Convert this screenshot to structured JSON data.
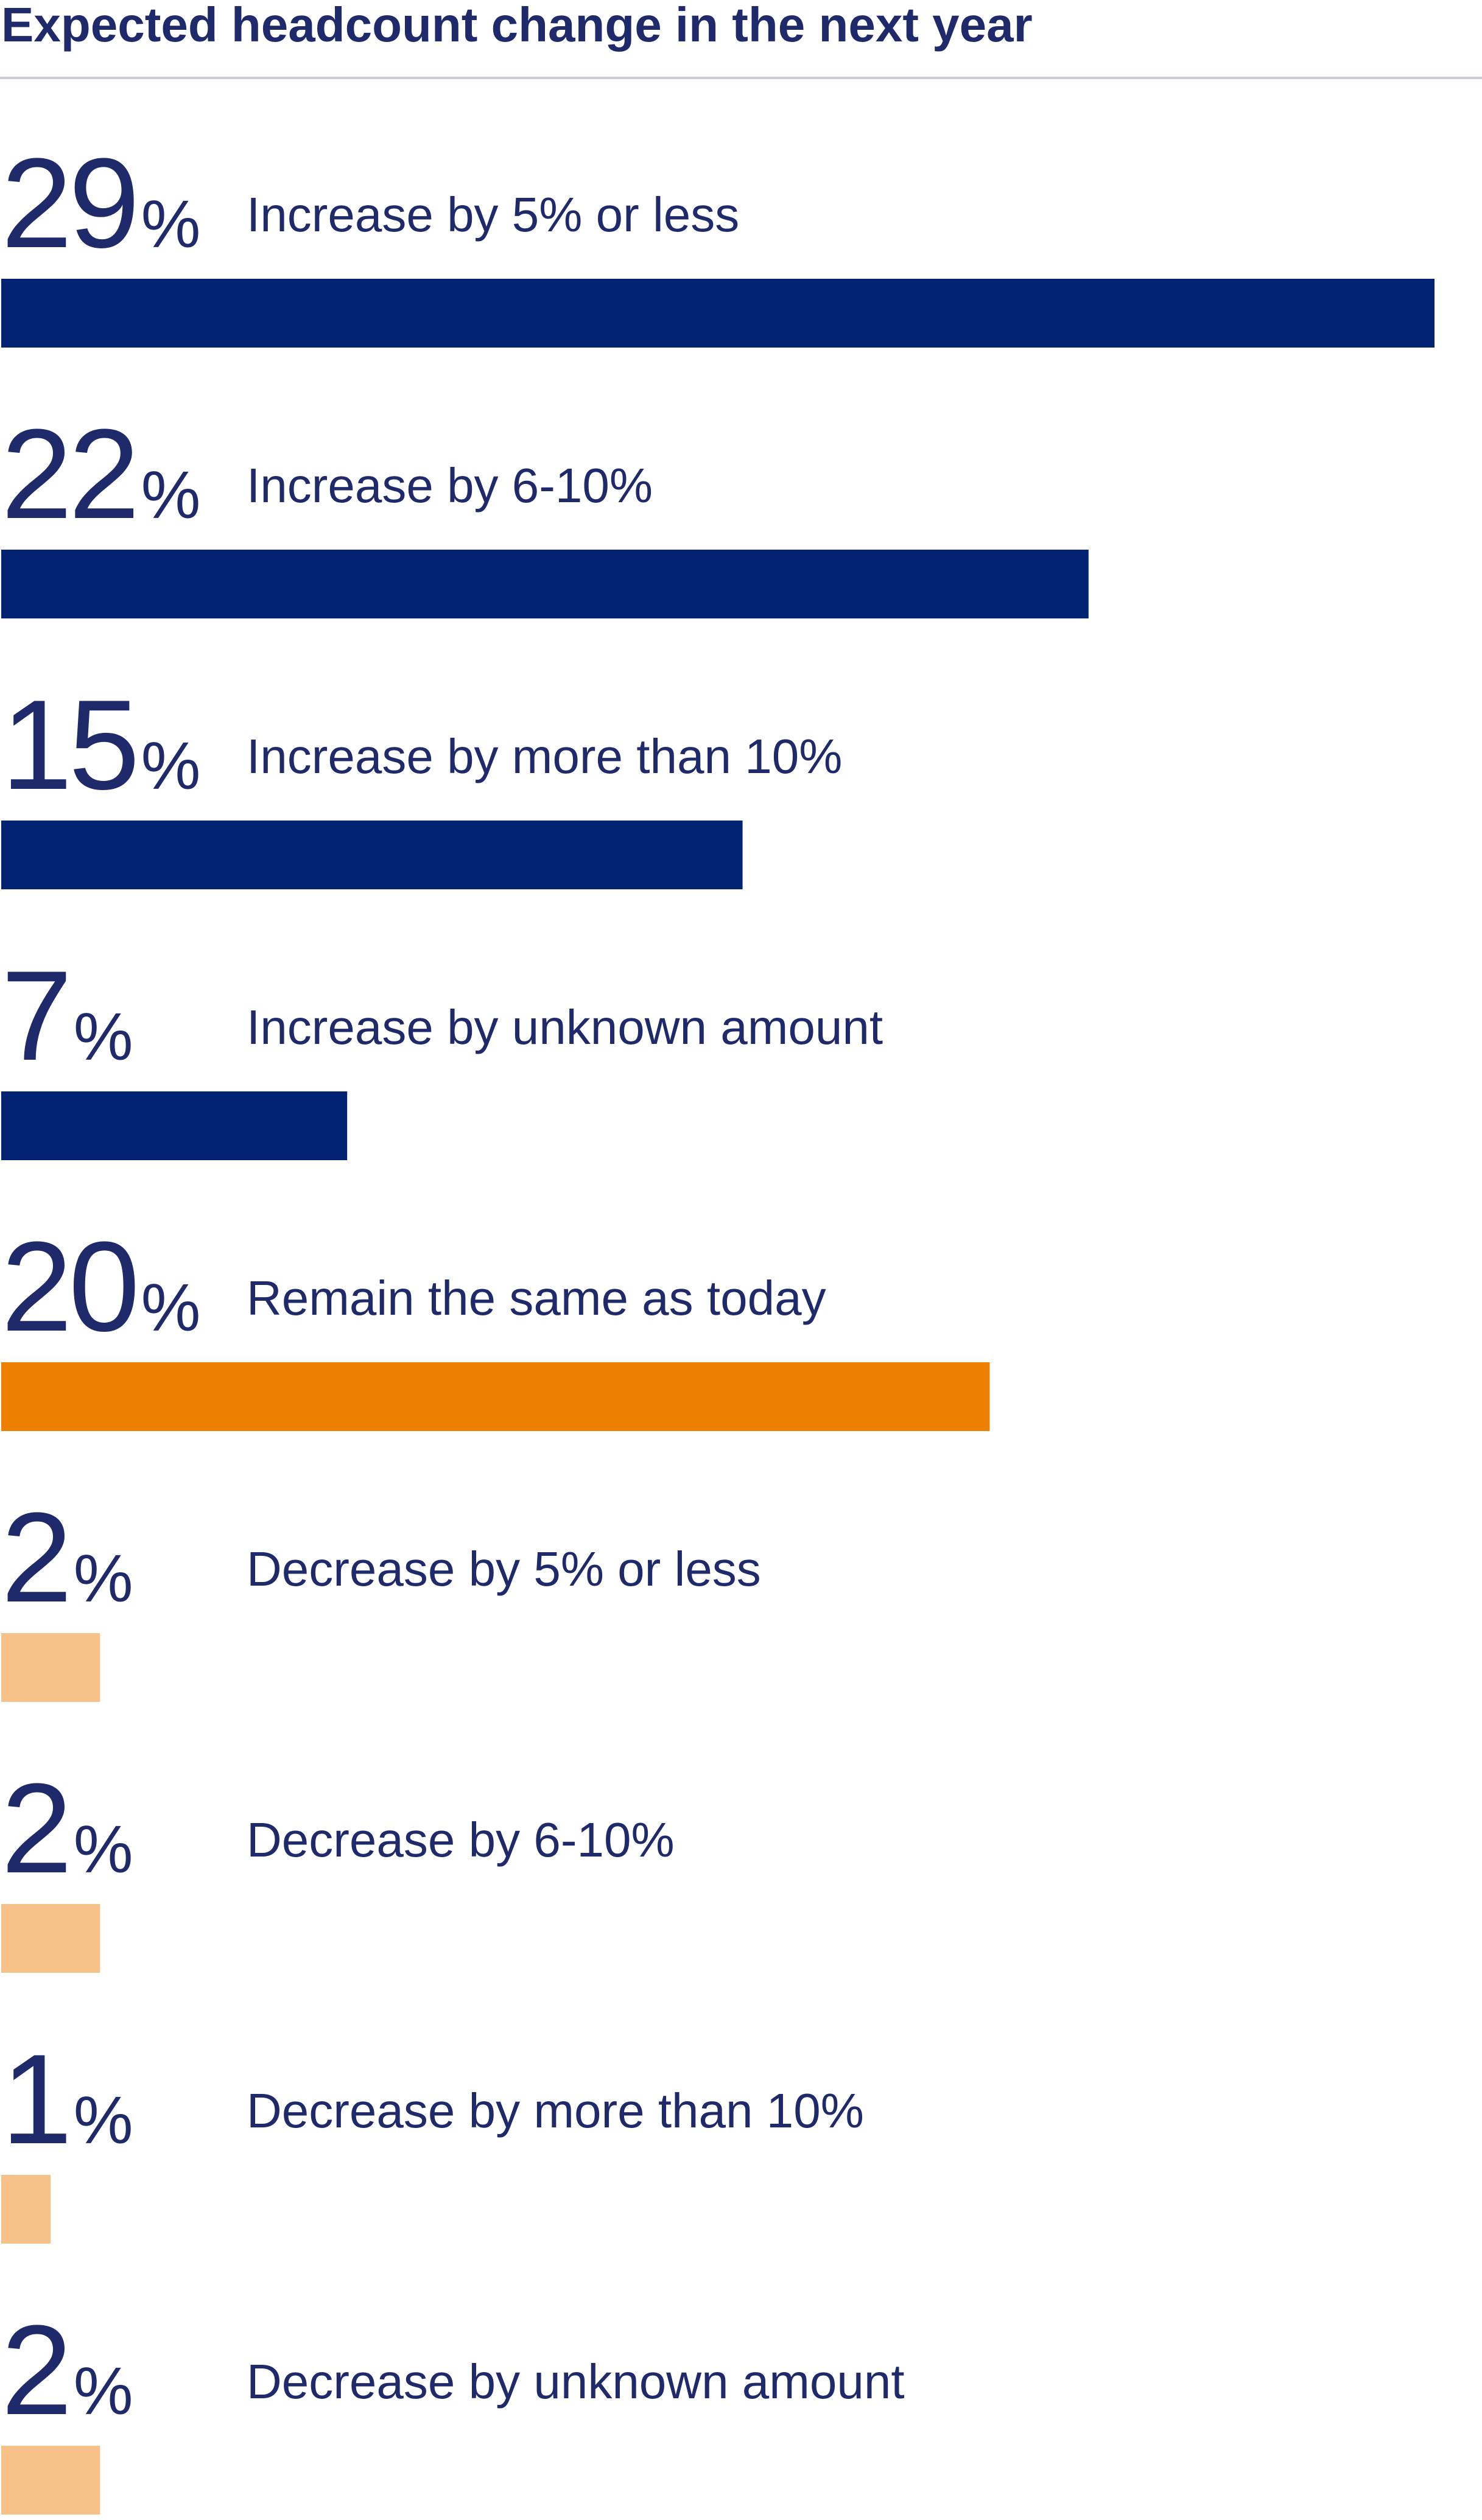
{
  "chart_data": {
    "type": "bar",
    "orientation": "horizontal",
    "title": "Expected headcount change in the next year",
    "value_suffix": "%",
    "categories": [
      "Increase by 5% or less",
      "Increase by 6-10%",
      "Increase by more than 10%",
      "Increase by unknown amount",
      "Remain the same as today",
      "Decrease by 5% or less",
      "Decrease by 6-10%",
      "Decrease by more than 10%",
      "Decrease by unknown amount"
    ],
    "values": [
      29,
      22,
      15,
      7,
      20,
      2,
      2,
      1,
      2
    ],
    "value_labels": [
      "29",
      "22",
      "15",
      "7",
      "20",
      "2",
      "2",
      "1",
      "2"
    ],
    "bar_colors": [
      "#012372",
      "#012372",
      "#012372",
      "#012372",
      "#ee8000",
      "#f6c289",
      "#f6c289",
      "#f6c289",
      "#f6c289"
    ],
    "text_color": "#1f2a6b",
    "grid": false,
    "legend": "none"
  }
}
